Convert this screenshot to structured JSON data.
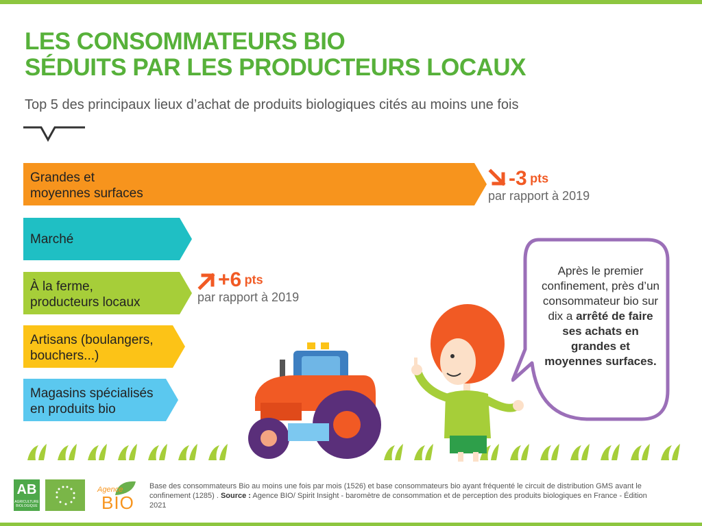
{
  "title": {
    "line1": "LES CONSOMMATEURS BIO",
    "line2": "SÉDUITS PAR LES PRODUCTEURS LOCAUX"
  },
  "subtitle": "Top 5 des principaux lieux d’achat de produits biologiques cités au moins une fois",
  "bars": [
    {
      "line1": "Grandes et",
      "line2": "moyennes surfaces",
      "color": "#f7941d"
    },
    {
      "line1": "Marché",
      "line2": "",
      "color": "#1fbfc4"
    },
    {
      "line1": "À la ferme,",
      "line2": "producteurs locaux",
      "color": "#a6ce39"
    },
    {
      "line1": "Artisans (boulangers,",
      "line2": "bouchers...)",
      "color": "#fcc317"
    },
    {
      "line1": "Magasins spécialisés",
      "line2": "en produits bio",
      "color": "#5bc8ef"
    }
  ],
  "changes": {
    "gms": {
      "value": "-3",
      "unit": "pts",
      "ref": "par rapport à 2019",
      "direction": "down"
    },
    "ferme": {
      "value": "+6",
      "unit": "pts",
      "ref": "par rapport à 2019",
      "direction": "up"
    }
  },
  "bubble": {
    "text": "Après le premier confinement, près d’un consommateur bio sur dix a ",
    "bold": "arrêté de faire ses achats en grandes et moyennes surfaces."
  },
  "footer": {
    "text1": "Base des consommateurs Bio au moins une fois par mois (1526) et base consommateurs bio ayant fréquenté le circuit de distribution GMS avant le confinement (1285) . ",
    "source_label": "Source :",
    "text2": " Agence BIO/ Spirit Insight - baromètre de consommation et de perception des produits biologiques en France - Édition 2021"
  },
  "logos": {
    "ab": "AB",
    "ab_small": "AGRICULTURE BIOLOGIQUE",
    "agence": "Agence",
    "bio": "BIO"
  },
  "colors": {
    "title_green": "#57b13a",
    "accent_orange": "#f15a24",
    "bubble_border": "#9b6fb8"
  }
}
